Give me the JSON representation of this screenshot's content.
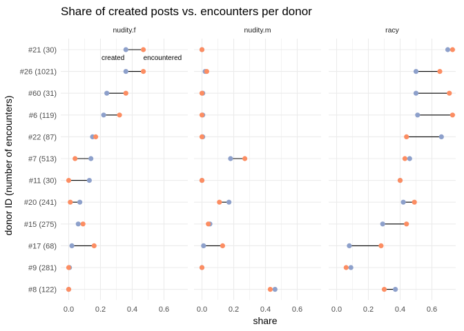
{
  "chart_data": {
    "type": "dumbbell",
    "title": "Share of created posts vs. encounters per donor",
    "xlabel": "share",
    "ylabel": "donor ID (number of encounters)",
    "xlim": [
      -0.05,
      0.75
    ],
    "x_ticks": [
      0.0,
      0.2,
      0.4,
      0.6
    ],
    "x_tick_labels": [
      "0.0",
      "0.2",
      "0.4",
      "0.6"
    ],
    "categories": [
      "#21 (30)",
      "#26 (1021)",
      "#60 (31)",
      "#6 (119)",
      "#22 (87)",
      "#7 (513)",
      "#11 (30)",
      "#20 (241)",
      "#15 (275)",
      "#17 (68)",
      "#9 (281)",
      "#8 (122)"
    ],
    "colors": {
      "created": "#8da0cb",
      "encountered": "#fc8d62",
      "segment": "#000000",
      "grid": "#ebebeb"
    },
    "annotations": {
      "created": "created",
      "encountered": "encountered"
    },
    "panels": [
      {
        "name": "nudity.f",
        "created": [
          0.36,
          0.36,
          0.24,
          0.22,
          0.15,
          0.14,
          0.13,
          0.07,
          0.06,
          0.02,
          0.005,
          0.0
        ],
        "encountered": [
          0.47,
          0.47,
          0.36,
          0.32,
          0.17,
          0.04,
          0.0,
          0.01,
          0.09,
          0.16,
          0.0,
          0.0
        ]
      },
      {
        "name": "nudity.m",
        "created": [
          0.0,
          0.02,
          0.005,
          0.005,
          0.005,
          0.18,
          0.0,
          0.17,
          0.05,
          0.01,
          0.0,
          0.46
        ],
        "encountered": [
          0.0,
          0.03,
          0.0,
          0.0,
          0.0,
          0.27,
          0.0,
          0.11,
          0.04,
          0.13,
          0.0,
          0.43
        ]
      },
      {
        "name": "racy",
        "created": [
          0.7,
          0.5,
          0.5,
          0.51,
          0.66,
          0.46,
          0.4,
          0.42,
          0.29,
          0.08,
          0.09,
          0.37
        ],
        "encountered": [
          0.73,
          0.65,
          0.71,
          0.73,
          0.44,
          0.43,
          0.4,
          0.49,
          0.44,
          0.28,
          0.06,
          0.3
        ]
      }
    ]
  }
}
